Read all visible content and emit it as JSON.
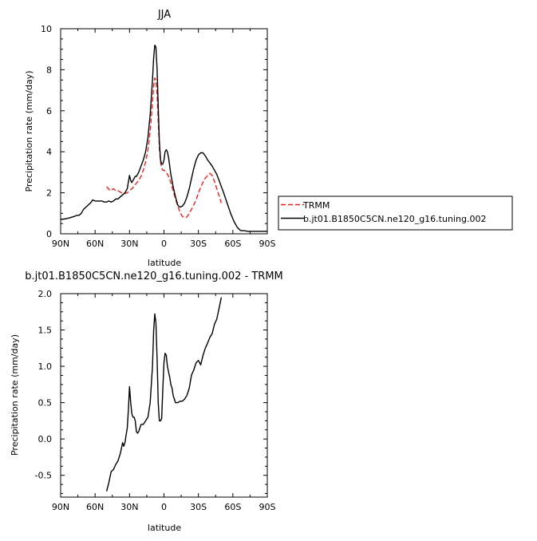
{
  "chart_data": [
    {
      "type": "line",
      "title": "JJA",
      "xlabel": "latitude",
      "ylabel": "Precipitation rate  (mm/day)",
      "xlim": [
        90,
        -90
      ],
      "ylim": [
        0,
        10
      ],
      "x_ticks": [
        90,
        60,
        30,
        0,
        -30,
        -60,
        -90
      ],
      "x_tick_labels": [
        "90N",
        "60N",
        "30N",
        "0",
        "30S",
        "60S",
        "90S"
      ],
      "y_ticks": [
        0,
        2,
        4,
        6,
        8,
        10
      ],
      "y_tick_labels": [
        "0",
        "2",
        "4",
        "6",
        "8",
        "10"
      ],
      "legend": {
        "position": "right",
        "entries": [
          "TRMM",
          "b.jt01.B1850C5CN.ne120_g16.tuning.002"
        ]
      },
      "series": [
        {
          "name": "TRMM",
          "color": "#e8231f",
          "dash": true,
          "x": [
            50,
            47,
            44,
            42,
            40,
            37,
            35,
            32,
            30,
            27,
            25,
            22,
            20,
            18,
            16,
            14,
            12,
            10,
            9,
            8,
            7,
            6,
            5,
            4,
            3,
            2,
            1,
            0,
            -2,
            -4,
            -6,
            -8,
            -10,
            -12,
            -14,
            -16,
            -18,
            -20,
            -22,
            -25,
            -28,
            -30,
            -33,
            -35,
            -38,
            -40,
            -42,
            -44,
            -46,
            -48,
            -50
          ],
          "y": [
            2.3,
            2.1,
            2.2,
            2.1,
            2.1,
            2.0,
            1.95,
            2.0,
            2.1,
            2.25,
            2.4,
            2.6,
            2.8,
            3.1,
            3.5,
            4.1,
            5.0,
            6.4,
            7.2,
            7.6,
            7.5,
            6.8,
            5.5,
            4.2,
            3.5,
            3.2,
            3.1,
            3.1,
            3.0,
            2.8,
            2.5,
            2.1,
            1.7,
            1.35,
            1.05,
            0.85,
            0.78,
            0.82,
            1.0,
            1.3,
            1.65,
            2.0,
            2.4,
            2.65,
            2.85,
            2.95,
            2.85,
            2.55,
            2.2,
            1.85,
            1.5
          ]
        },
        {
          "name": "b.jt01.B1850C5CN.ne120_g16.tuning.002",
          "color": "#000000",
          "dash": false,
          "x": [
            90,
            87,
            84,
            81,
            78,
            76,
            74,
            72,
            70,
            68,
            66,
            64,
            62,
            60,
            58,
            56,
            54,
            52,
            50,
            48,
            46,
            44,
            42,
            40,
            38,
            36,
            34,
            32,
            30,
            29,
            28,
            27,
            26,
            25,
            24,
            22,
            20,
            18,
            16,
            14,
            12,
            10,
            9,
            8,
            7,
            6,
            5,
            4,
            3,
            2,
            1,
            0,
            -1,
            -2,
            -3,
            -4,
            -5,
            -6,
            -8,
            -10,
            -12,
            -14,
            -16,
            -18,
            -20,
            -22,
            -24,
            -26,
            -28,
            -30,
            -32,
            -34,
            -36,
            -38,
            -40,
            -42,
            -44,
            -46,
            -48,
            -50,
            -52,
            -55,
            -58,
            -61,
            -64,
            -67,
            -70,
            -73,
            -76,
            -79,
            -82,
            -85,
            -88,
            -90
          ],
          "y": [
            0.7,
            0.72,
            0.75,
            0.8,
            0.85,
            0.9,
            0.9,
            1.0,
            1.2,
            1.3,
            1.4,
            1.5,
            1.65,
            1.6,
            1.6,
            1.6,
            1.6,
            1.55,
            1.55,
            1.6,
            1.55,
            1.6,
            1.7,
            1.7,
            1.8,
            1.9,
            2.0,
            2.2,
            2.85,
            2.6,
            2.5,
            2.6,
            2.7,
            2.8,
            2.8,
            3.0,
            3.3,
            3.6,
            4.0,
            4.7,
            5.8,
            7.5,
            8.6,
            9.2,
            9.1,
            8.0,
            6.2,
            4.5,
            3.6,
            3.4,
            3.4,
            3.6,
            4.0,
            4.1,
            4.0,
            3.7,
            3.3,
            2.9,
            2.3,
            1.8,
            1.4,
            1.3,
            1.35,
            1.5,
            1.8,
            2.2,
            2.7,
            3.2,
            3.6,
            3.85,
            3.95,
            3.95,
            3.8,
            3.6,
            3.45,
            3.3,
            3.1,
            2.9,
            2.6,
            2.3,
            2.0,
            1.5,
            1.0,
            0.6,
            0.3,
            0.15,
            0.15,
            0.12,
            0.12,
            0.12,
            0.12,
            0.12,
            0.12,
            0.12
          ]
        }
      ]
    },
    {
      "type": "line",
      "title": "b.jt01.B1850C5CN.ne120_g16.tuning.002 - TRMM",
      "xlabel": "latitude",
      "ylabel": "Precipitation rate  (mm/day)",
      "xlim": [
        90,
        -90
      ],
      "ylim": [
        -0.8,
        2.0
      ],
      "x_ticks": [
        90,
        60,
        30,
        0,
        -30,
        -60,
        -90
      ],
      "x_tick_labels": [
        "90N",
        "60N",
        "30N",
        "0",
        "30S",
        "60S",
        "90S"
      ],
      "y_ticks": [
        -0.5,
        0.0,
        0.5,
        1.0,
        1.5,
        2.0
      ],
      "y_tick_labels": [
        "-0.5",
        "0.0",
        "0.5",
        "1.0",
        "1.5",
        "2.0"
      ],
      "series": [
        {
          "color": "#000000",
          "dash": false,
          "x": [
            50,
            48,
            46,
            44,
            42,
            40,
            38,
            36,
            35,
            34,
            33,
            32,
            31,
            30,
            29,
            28,
            27,
            26,
            25,
            24,
            23,
            22,
            21,
            20,
            18,
            16,
            14,
            12,
            10,
            9,
            8,
            7,
            6,
            5,
            4,
            3,
            2,
            1,
            0,
            -1,
            -2,
            -3,
            -4,
            -5,
            -6,
            -7,
            -8,
            -10,
            -12,
            -14,
            -16,
            -18,
            -20,
            -22,
            -24,
            -26,
            -28,
            -30,
            -32,
            -34,
            -36,
            -38,
            -40,
            -42,
            -44,
            -46,
            -48,
            -50
          ],
          "y": [
            -0.72,
            -0.6,
            -0.45,
            -0.42,
            -0.35,
            -0.3,
            -0.2,
            -0.05,
            -0.1,
            -0.05,
            0.05,
            0.15,
            0.4,
            0.72,
            0.5,
            0.35,
            0.3,
            0.3,
            0.25,
            0.1,
            0.08,
            0.1,
            0.15,
            0.2,
            0.2,
            0.25,
            0.3,
            0.5,
            1.0,
            1.5,
            1.72,
            1.6,
            1.1,
            0.5,
            0.25,
            0.25,
            0.28,
            0.7,
            1.05,
            1.18,
            1.15,
            1.0,
            0.92,
            0.85,
            0.75,
            0.7,
            0.6,
            0.5,
            0.5,
            0.52,
            0.52,
            0.55,
            0.6,
            0.7,
            0.88,
            0.95,
            1.05,
            1.08,
            1.02,
            1.15,
            1.25,
            1.32,
            1.4,
            1.45,
            1.58,
            1.65,
            1.8,
            1.95
          ]
        }
      ]
    }
  ]
}
